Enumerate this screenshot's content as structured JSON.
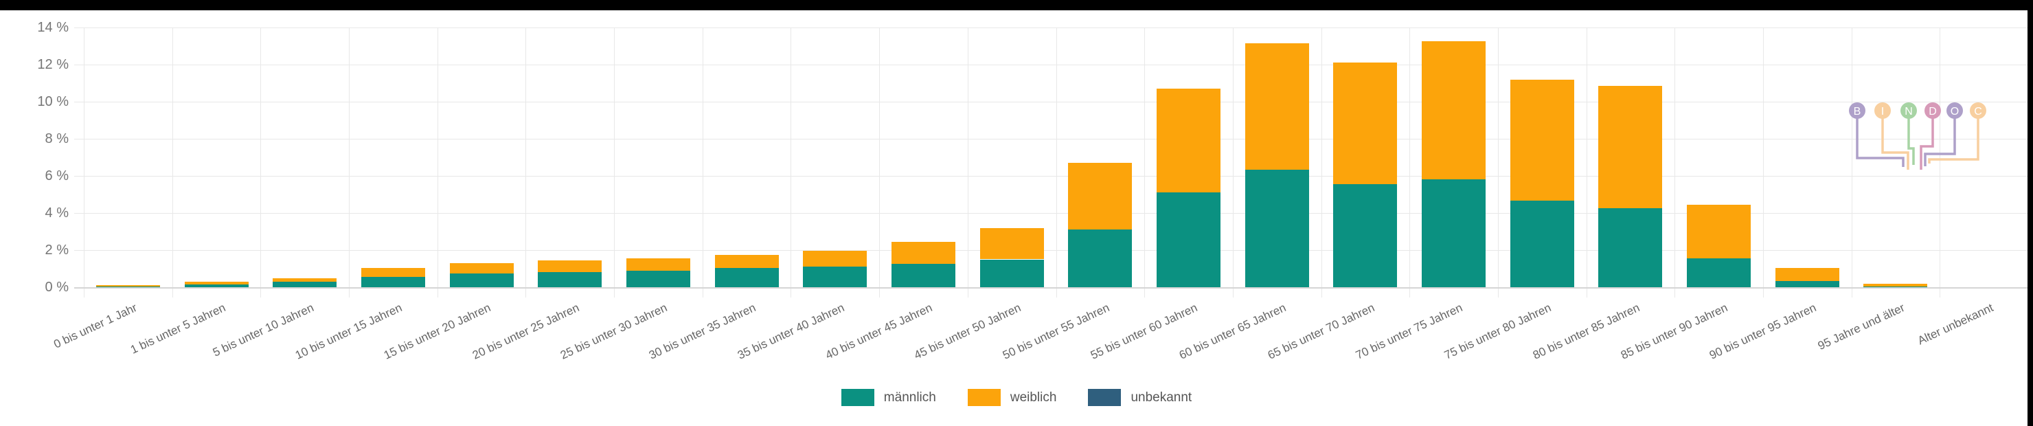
{
  "page": {
    "background": "#ffffff",
    "top_border_color": "#000000",
    "right_border_color": "#000000",
    "grid_color": "#e8e8e8",
    "axis_color": "#d5d5d5",
    "tick_label_color": "#757575",
    "x_label_color": "#666666",
    "legend_text_color": "#555555"
  },
  "chart_data": {
    "type": "bar",
    "stacked": true,
    "title": "",
    "xlabel": "",
    "ylabel": "",
    "ylim": [
      0,
      14
    ],
    "grid": true,
    "legend_position": "bottom-center",
    "x_tick_rotation": -25,
    "y_ticks": [
      "0 %",
      "2 %",
      "4 %",
      "6 %",
      "8 %",
      "10 %",
      "12 %",
      "14 %"
    ],
    "y_tick_step_percent": 2,
    "categories": [
      "0 bis unter 1 Jahr",
      "1 bis unter 5 Jahren",
      "5 bis unter 10 Jahren",
      "10 bis unter 15 Jahren",
      "15 bis unter 20 Jahren",
      "20 bis unter 25 Jahren",
      "25 bis unter 30 Jahren",
      "30 bis unter 35 Jahren",
      "35 bis unter 40 Jahren",
      "40 bis unter 45 Jahren",
      "45 bis unter 50 Jahren",
      "50 bis unter 55 Jahren",
      "55 bis unter 60 Jahren",
      "60 bis unter 65 Jahren",
      "65 bis unter 70 Jahren",
      "70 bis unter 75 Jahren",
      "75 bis unter 80 Jahren",
      "80 bis unter 85 Jahren",
      "85 bis unter 90 Jahren",
      "90 bis unter 95 Jahren",
      "95 Jahre und älter",
      "Alter unbekannt"
    ],
    "series": [
      {
        "name": "männlich",
        "color": "#0b9181",
        "values": [
          0.05,
          0.15,
          0.3,
          0.55,
          0.75,
          0.8,
          0.9,
          1.05,
          1.1,
          1.25,
          1.5,
          3.1,
          5.1,
          6.35,
          5.55,
          5.8,
          4.65,
          4.25,
          1.55,
          0.35,
          0.05,
          0
        ]
      },
      {
        "name": "weiblich",
        "color": "#fca40b",
        "values": [
          0.05,
          0.15,
          0.2,
          0.5,
          0.55,
          0.65,
          0.65,
          0.7,
          0.85,
          1.2,
          1.7,
          3.6,
          5.6,
          6.8,
          6.55,
          7.45,
          6.55,
          6.6,
          2.9,
          0.7,
          0.15,
          0
        ]
      },
      {
        "name": "unbekannt",
        "color": "#2f5f7e",
        "values": [
          0,
          0,
          0,
          0,
          0,
          0,
          0,
          0,
          0,
          0,
          0,
          0,
          0,
          0,
          0,
          0,
          0,
          0,
          0,
          0,
          0,
          0
        ]
      }
    ]
  },
  "legend": {
    "items": [
      "männlich",
      "weiblich",
      "unbekannt"
    ]
  },
  "logo": {
    "name": "BINDOC",
    "letters": [
      "B",
      "I",
      "N",
      "D",
      "O",
      "C"
    ],
    "letter_colors": [
      "#aea0c9",
      "#f8cf9f",
      "#a7d4a4",
      "#d79ab8",
      "#aea0c9",
      "#f8cf9f"
    ]
  }
}
